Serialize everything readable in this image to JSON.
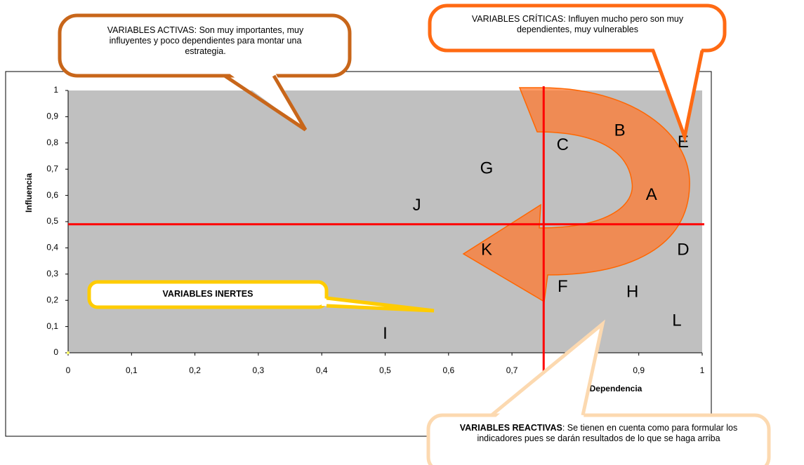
{
  "chart_data": {
    "type": "scatter",
    "x_label": "Dependencia",
    "y_label": "Influencia",
    "xlim": [
      0,
      1
    ],
    "ylim": [
      0,
      1
    ],
    "xticks": [
      0,
      {
        "value": 0.1,
        "label": "0,1"
      },
      {
        "value": 0.2,
        "label": "0,2"
      },
      {
        "value": 0.3,
        "label": "0,3"
      },
      {
        "value": 0.4,
        "label": "0,4"
      },
      {
        "value": 0.5,
        "label": "0,5"
      },
      {
        "value": 0.6,
        "label": "0,6"
      },
      {
        "value": 0.7,
        "label": "0,7"
      },
      {
        "value": 0.8,
        "label": "0,8"
      },
      {
        "value": 0.9,
        "label": "0,9"
      },
      1
    ],
    "yticks": [
      0,
      {
        "value": 0.1,
        "label": "0,1"
      },
      {
        "value": 0.2,
        "label": "0,2"
      },
      {
        "value": 0.3,
        "label": "0,3"
      },
      {
        "value": 0.4,
        "label": "0,4"
      },
      {
        "value": 0.5,
        "label": "0,5"
      },
      {
        "value": 0.6,
        "label": "0,6"
      },
      {
        "value": 0.7,
        "label": "0,7"
      },
      {
        "value": 0.8,
        "label": "0,8"
      },
      {
        "value": 0.9,
        "label": "0,9"
      },
      1
    ],
    "points": [
      {
        "label": "A",
        "x": 0.92,
        "y": 0.6
      },
      {
        "label": "B",
        "x": 0.87,
        "y": 0.845
      },
      {
        "label": "C",
        "x": 0.78,
        "y": 0.79
      },
      {
        "label": "D",
        "x": 0.97,
        "y": 0.39
      },
      {
        "label": "E",
        "x": 0.97,
        "y": 0.8
      },
      {
        "label": "F",
        "x": 0.78,
        "y": 0.25
      },
      {
        "label": "G",
        "x": 0.66,
        "y": 0.7
      },
      {
        "label": "H",
        "x": 0.89,
        "y": 0.23
      },
      {
        "label": "I",
        "x": 0.5,
        "y": 0.07
      },
      {
        "label": "J",
        "x": 0.55,
        "y": 0.56
      },
      {
        "label": "K",
        "x": 0.66,
        "y": 0.39
      },
      {
        "label": "L",
        "x": 0.96,
        "y": 0.12
      }
    ],
    "thresholds": {
      "x": 0.75,
      "y": 0.49
    },
    "threshold_color": "#ff0000",
    "plot_color": "#c0c0c0",
    "annotations": {
      "activas": "VARIABLES ACTIVAS:  Son muy importantes, muy influyentes y poco dependientes para montar una estrategia.",
      "criticas": "VARIABLES CRÍTICAS:  Influyen mucho pero son muy dependientes, muy vulnerables",
      "inertes": "VARIABLES INERTES",
      "reactivas_title": "VARIABLES REACTIVAS",
      "reactivas_text": ":  Se tienen en cuenta como para formular los indicadores pues se darán resultados de lo que se haga arriba"
    }
  }
}
